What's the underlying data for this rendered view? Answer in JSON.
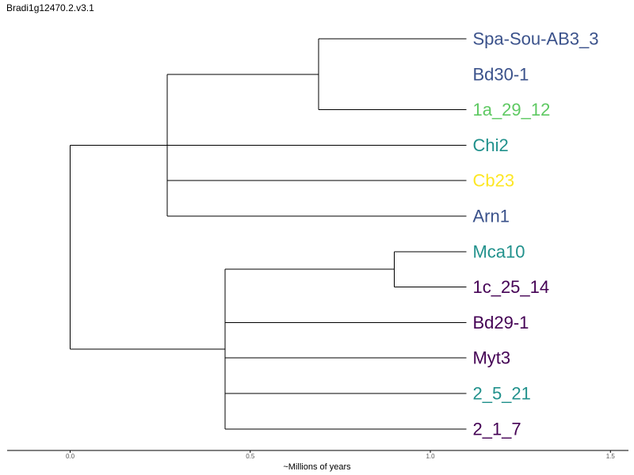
{
  "title": "Bradi1g12470.2.v3.1",
  "chart_data": {
    "type": "dendrogram",
    "title": "Bradi1g12470.2.v3.1",
    "xlabel": "~Millions of years",
    "xlim": [
      -0.175,
      1.55
    ],
    "xticks": [
      0.0,
      0.5,
      1.0,
      1.5
    ],
    "xtick_labels": [
      "0.0",
      "0.5",
      "1.0",
      "1.5"
    ],
    "tip_x": 1.1,
    "colors": {
      "dark_blue": "#3b528b",
      "green": "#5ec962",
      "teal": "#21918c",
      "yellow": "#fde725",
      "purple": "#440154",
      "branch": "#000000"
    },
    "leaves": [
      {
        "name": "Spa-Sou-AB3_3",
        "color": "#3b528b"
      },
      {
        "name": "Bd30-1",
        "color": "#3b528b"
      },
      {
        "name": "1a_29_12",
        "color": "#5ec962"
      },
      {
        "name": "Chi2",
        "color": "#21918c"
      },
      {
        "name": "Cb23",
        "color": "#fde725"
      },
      {
        "name": "Arn1",
        "color": "#3b528b"
      },
      {
        "name": "Mca10",
        "color": "#21918c"
      },
      {
        "name": "1c_25_14",
        "color": "#440154"
      },
      {
        "name": "Bd29-1",
        "color": "#440154"
      },
      {
        "name": "Myt3",
        "color": "#440154"
      },
      {
        "name": "2_5_21",
        "color": "#21918c"
      },
      {
        "name": "2_1_7",
        "color": "#440154"
      }
    ],
    "tree": {
      "height": 0.0,
      "children": [
        {
          "height": 0.27,
          "children": [
            {
              "height": 0.69,
              "children": [
                {
                  "leaf": 0
                },
                {
                  "leaf": 2
                }
              ]
            },
            {
              "leaf": 3
            },
            {
              "leaf": 4
            },
            {
              "leaf": 5
            }
          ]
        },
        {
          "height": 0.43,
          "children": [
            {
              "height": 0.9,
              "children": [
                {
                  "leaf": 6
                },
                {
                  "leaf": 7
                }
              ]
            },
            {
              "leaf": 8
            },
            {
              "leaf": 9
            },
            {
              "leaf": 10
            },
            {
              "leaf": 11
            }
          ]
        }
      ]
    }
  }
}
